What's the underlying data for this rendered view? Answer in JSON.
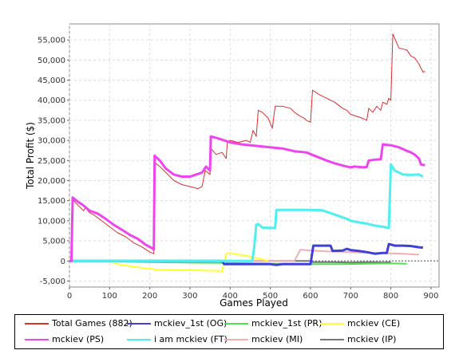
{
  "chart_data": {
    "type": "line",
    "title": "",
    "xlabel": "Games Played",
    "ylabel": "Total Profit ($)",
    "xlim": [
      0,
      920
    ],
    "ylim": [
      -6500,
      59000
    ],
    "xticks": [
      0,
      100,
      200,
      300,
      400,
      500,
      600,
      700,
      800,
      900
    ],
    "yticks": [
      -5000,
      0,
      5000,
      10000,
      15000,
      20000,
      25000,
      30000,
      35000,
      40000,
      45000,
      50000,
      55000
    ],
    "ytick_labels": [
      "-5,000",
      "0",
      "5,000",
      "10,000",
      "15,000",
      "20,000",
      "25,000",
      "30,000",
      "35,000",
      "40,000",
      "45,000",
      "50,000",
      "55,000"
    ],
    "grid": true,
    "legend_position": "bottom",
    "series": [
      {
        "name": "Total Games (882)",
        "color": "#d93030",
        "width": 1,
        "points": [
          [
            0,
            0
          ],
          [
            5,
            0
          ],
          [
            8,
            15500
          ],
          [
            15,
            14500
          ],
          [
            25,
            13500
          ],
          [
            35,
            12500
          ],
          [
            40,
            13200
          ],
          [
            50,
            12000
          ],
          [
            60,
            11500
          ],
          [
            80,
            10000
          ],
          [
            100,
            8500
          ],
          [
            120,
            7000
          ],
          [
            140,
            6000
          ],
          [
            160,
            4500
          ],
          [
            180,
            3500
          ],
          [
            200,
            2200
          ],
          [
            210,
            1800
          ],
          [
            212,
            24500
          ],
          [
            225,
            23500
          ],
          [
            240,
            22000
          ],
          [
            260,
            20000
          ],
          [
            280,
            19000
          ],
          [
            300,
            18500
          ],
          [
            320,
            18000
          ],
          [
            330,
            18500
          ],
          [
            338,
            22500
          ],
          [
            350,
            21500
          ],
          [
            352,
            28000
          ],
          [
            365,
            26500
          ],
          [
            380,
            27000
          ],
          [
            390,
            25500
          ],
          [
            393,
            29500
          ],
          [
            400,
            30000
          ],
          [
            420,
            29500
          ],
          [
            440,
            30000
          ],
          [
            450,
            29500
          ],
          [
            457,
            32500
          ],
          [
            465,
            31000
          ],
          [
            470,
            37500
          ],
          [
            480,
            37000
          ],
          [
            495,
            35500
          ],
          [
            505,
            33000
          ],
          [
            512,
            38500
          ],
          [
            530,
            38500
          ],
          [
            550,
            38000
          ],
          [
            560,
            37000
          ],
          [
            575,
            36000
          ],
          [
            585,
            35500
          ],
          [
            590,
            35000
          ],
          [
            600,
            34500
          ],
          [
            605,
            42500
          ],
          [
            620,
            41500
          ],
          [
            640,
            40500
          ],
          [
            660,
            39500
          ],
          [
            680,
            38000
          ],
          [
            690,
            37500
          ],
          [
            700,
            36500
          ],
          [
            715,
            36000
          ],
          [
            730,
            35500
          ],
          [
            740,
            35000
          ],
          [
            745,
            38000
          ],
          [
            755,
            37000
          ],
          [
            765,
            38500
          ],
          [
            775,
            37500
          ],
          [
            780,
            39500
          ],
          [
            790,
            39000
          ],
          [
            795,
            40500
          ],
          [
            800,
            40000
          ],
          [
            805,
            56500
          ],
          [
            820,
            53000
          ],
          [
            840,
            52500
          ],
          [
            850,
            51000
          ],
          [
            860,
            50500
          ],
          [
            870,
            49000
          ],
          [
            880,
            47000
          ],
          [
            885,
            47200
          ]
        ]
      },
      {
        "name": "mckiev_1st (OG)",
        "color": "#4040d8",
        "width": 3,
        "points": [
          [
            0,
            0
          ],
          [
            380,
            0
          ],
          [
            385,
            -800
          ],
          [
            500,
            -800
          ],
          [
            515,
            -1000
          ],
          [
            530,
            -800
          ],
          [
            600,
            -800
          ],
          [
            607,
            3800
          ],
          [
            650,
            3800
          ],
          [
            655,
            2500
          ],
          [
            680,
            2600
          ],
          [
            690,
            3000
          ],
          [
            700,
            2700
          ],
          [
            720,
            2500
          ],
          [
            740,
            2200
          ],
          [
            760,
            1800
          ],
          [
            780,
            2000
          ],
          [
            790,
            2000
          ],
          [
            795,
            4200
          ],
          [
            810,
            3800
          ],
          [
            830,
            3800
          ],
          [
            850,
            3700
          ],
          [
            870,
            3400
          ],
          [
            880,
            3300
          ]
        ]
      },
      {
        "name": "mckiev_1st (PR)",
        "color": "#50e050",
        "width": 2,
        "points": [
          [
            0,
            0
          ],
          [
            100,
            0
          ],
          [
            150,
            -200
          ],
          [
            200,
            -300
          ],
          [
            280,
            -400
          ],
          [
            380,
            -500
          ],
          [
            450,
            -600
          ],
          [
            520,
            -700
          ],
          [
            600,
            -800
          ],
          [
            680,
            -800
          ],
          [
            740,
            -700
          ],
          [
            800,
            -600
          ],
          [
            840,
            -700
          ]
        ]
      },
      {
        "name": "mckiev (CE)",
        "color": "#ffff30",
        "width": 2,
        "points": [
          [
            0,
            0
          ],
          [
            95,
            -100
          ],
          [
            130,
            -1000
          ],
          [
            170,
            -1600
          ],
          [
            220,
            -2200
          ],
          [
            280,
            -2300
          ],
          [
            340,
            -2400
          ],
          [
            375,
            -2500
          ],
          [
            380,
            -2600
          ],
          [
            385,
            -500
          ],
          [
            390,
            1800
          ],
          [
            400,
            2000
          ],
          [
            420,
            1600
          ],
          [
            440,
            1300
          ],
          [
            460,
            800
          ],
          [
            480,
            400
          ],
          [
            495,
            0
          ]
        ]
      },
      {
        "name": "mckiev (PS)",
        "color": "#ee44ee",
        "width": 3,
        "points": [
          [
            0,
            0
          ],
          [
            5,
            0
          ],
          [
            8,
            15800
          ],
          [
            20,
            14800
          ],
          [
            35,
            13800
          ],
          [
            50,
            12500
          ],
          [
            70,
            11800
          ],
          [
            90,
            10500
          ],
          [
            110,
            9000
          ],
          [
            130,
            7800
          ],
          [
            150,
            6500
          ],
          [
            170,
            5500
          ],
          [
            190,
            4000
          ],
          [
            205,
            3200
          ],
          [
            210,
            2800
          ],
          [
            212,
            26200
          ],
          [
            225,
            25000
          ],
          [
            240,
            23000
          ],
          [
            260,
            21500
          ],
          [
            280,
            21000
          ],
          [
            300,
            21000
          ],
          [
            315,
            21500
          ],
          [
            330,
            22000
          ],
          [
            340,
            23500
          ],
          [
            350,
            22500
          ],
          [
            352,
            31000
          ],
          [
            370,
            30500
          ],
          [
            385,
            30000
          ],
          [
            400,
            29500
          ],
          [
            430,
            29000
          ],
          [
            460,
            28700
          ],
          [
            500,
            28300
          ],
          [
            530,
            28000
          ],
          [
            560,
            27300
          ],
          [
            590,
            27000
          ],
          [
            610,
            26200
          ],
          [
            640,
            25000
          ],
          [
            660,
            24300
          ],
          [
            690,
            23500
          ],
          [
            700,
            23300
          ],
          [
            710,
            23500
          ],
          [
            720,
            23400
          ],
          [
            730,
            23300
          ],
          [
            740,
            23400
          ],
          [
            745,
            25000
          ],
          [
            760,
            25200
          ],
          [
            775,
            25300
          ],
          [
            780,
            29000
          ],
          [
            800,
            28800
          ],
          [
            820,
            28300
          ],
          [
            840,
            27400
          ],
          [
            850,
            27000
          ],
          [
            860,
            26400
          ],
          [
            870,
            25500
          ],
          [
            875,
            24000
          ],
          [
            885,
            23800
          ]
        ]
      },
      {
        "name": "i am mckiev (FT)",
        "color": "#50eeee",
        "width": 3,
        "points": [
          [
            0,
            0
          ],
          [
            455,
            0
          ],
          [
            460,
            3500
          ],
          [
            465,
            9000
          ],
          [
            470,
            9200
          ],
          [
            480,
            8300
          ],
          [
            500,
            8200
          ],
          [
            512,
            8200
          ],
          [
            515,
            12700
          ],
          [
            530,
            12700
          ],
          [
            550,
            12700
          ],
          [
            580,
            12700
          ],
          [
            600,
            12700
          ],
          [
            630,
            12600
          ],
          [
            650,
            11900
          ],
          [
            670,
            11200
          ],
          [
            690,
            10500
          ],
          [
            700,
            10000
          ],
          [
            720,
            9600
          ],
          [
            740,
            9300
          ],
          [
            760,
            8800
          ],
          [
            780,
            8500
          ],
          [
            795,
            8200
          ],
          [
            800,
            24000
          ],
          [
            810,
            22500
          ],
          [
            830,
            21500
          ],
          [
            850,
            21400
          ],
          [
            870,
            21500
          ],
          [
            880,
            21000
          ]
        ]
      },
      {
        "name": "mckiev (MI)",
        "color": "#f0b0b0",
        "width": 2,
        "points": [
          [
            0,
            0
          ],
          [
            560,
            0
          ],
          [
            575,
            2800
          ],
          [
            600,
            2600
          ],
          [
            640,
            2400
          ],
          [
            680,
            2300
          ],
          [
            720,
            2100
          ],
          [
            760,
            2000
          ],
          [
            800,
            1900
          ],
          [
            830,
            1800
          ],
          [
            860,
            1600
          ],
          [
            870,
            1600
          ]
        ]
      },
      {
        "name": "mckiev (IP)",
        "color": "#777777",
        "width": 2,
        "points": [
          [
            0,
            0
          ],
          [
            200,
            0
          ],
          [
            400,
            0
          ],
          [
            560,
            0
          ],
          [
            600,
            0
          ],
          [
            605,
            -300
          ],
          [
            650,
            -300
          ],
          [
            700,
            -400
          ],
          [
            750,
            -300
          ],
          [
            780,
            -400
          ],
          [
            800,
            -300
          ]
        ]
      }
    ]
  }
}
